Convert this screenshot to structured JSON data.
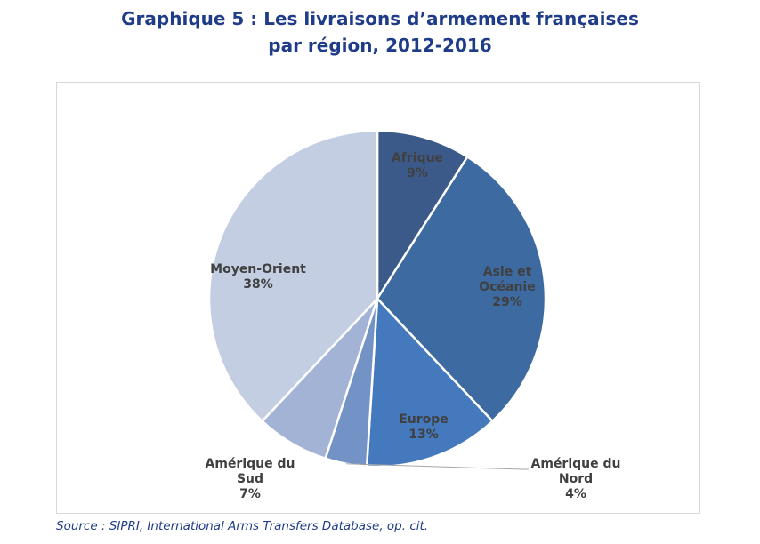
{
  "header": {
    "title_line1": "Graphique 5 : Les livraisons d’armement françaises",
    "title_line2": "par région, 2012-2016"
  },
  "source": "Source : SIPRI, International Arms Transfers Database, op. cit.",
  "colors": {
    "title": "#1f3c88",
    "label_dark": "#404040",
    "slice_border": "#ffffff"
  },
  "chart_data": {
    "type": "pie",
    "title": "Graphique 5 : Les livraisons d’armement françaises par région, 2012-2016",
    "unit": "%",
    "start": "top, clockwise",
    "slices": [
      {
        "label": [
          "Afrique"
        ],
        "value": 9,
        "value_label": "9%",
        "color": "#3b5a89"
      },
      {
        "label": [
          "Asie et",
          "Océanie"
        ],
        "value": 29,
        "value_label": "29%",
        "color": "#3d6aa0"
      },
      {
        "label": [
          "Europe"
        ],
        "value": 13,
        "value_label": "13%",
        "color": "#4479bd"
      },
      {
        "label": [
          "Amérique du",
          "Nord"
        ],
        "value": 4,
        "value_label": "4%",
        "color": "#7393c6"
      },
      {
        "label": [
          "Amérique du",
          "Sud"
        ],
        "value": 7,
        "value_label": "7%",
        "color": "#a2b3d6"
      },
      {
        "label": [
          "Moyen-Orient"
        ],
        "value": 38,
        "value_label": "38%",
        "color": "#c3cee3"
      }
    ]
  }
}
